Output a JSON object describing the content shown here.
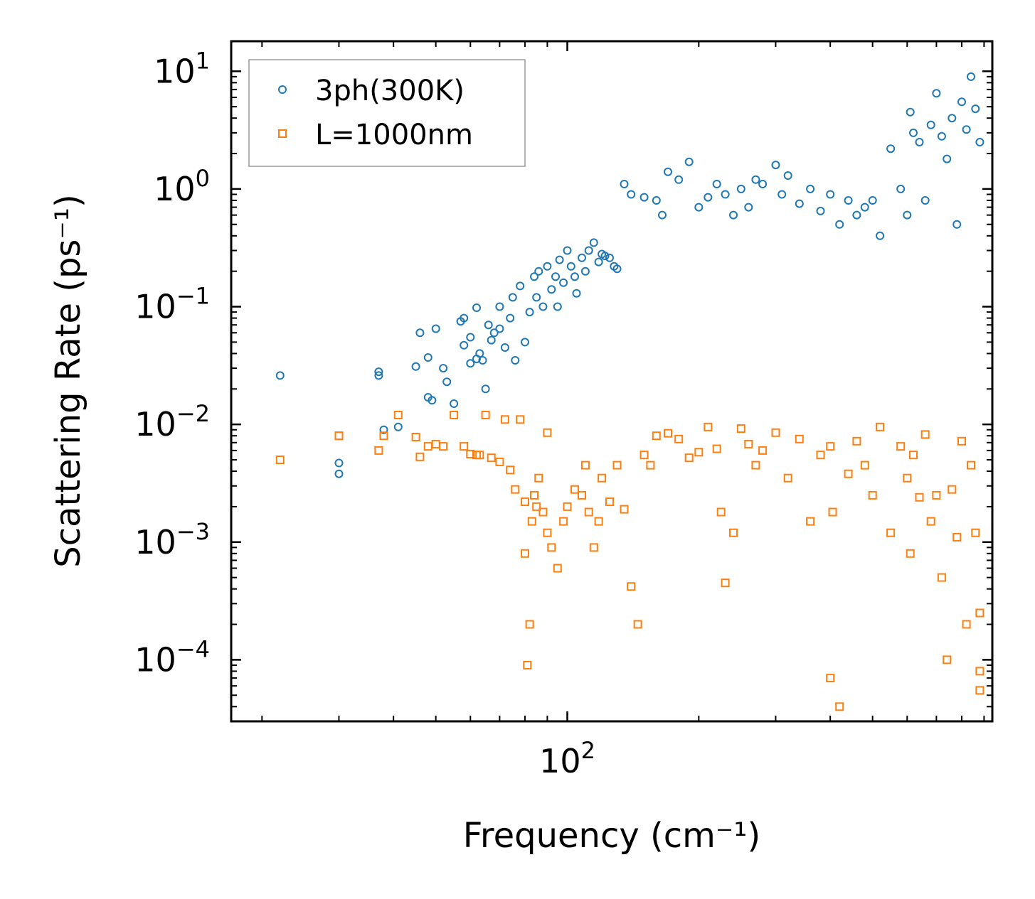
{
  "chart_data": {
    "type": "scatter",
    "title": "",
    "xlabel": "Frequency (cm⁻¹)",
    "ylabel": "Scattering Rate (ps⁻¹)",
    "xscale": "log",
    "yscale": "log",
    "xlim": [
      17,
      940
    ],
    "ylim": [
      3e-05,
      18
    ],
    "x_ticks": [
      {
        "value": 100,
        "base": "10",
        "exp": "2"
      }
    ],
    "y_ticks": [
      {
        "value": 10,
        "base": "10",
        "exp": "1"
      },
      {
        "value": 1,
        "base": "10",
        "exp": "0"
      },
      {
        "value": 0.1,
        "base": "10",
        "exp": "−1"
      },
      {
        "value": 0.01,
        "base": "10",
        "exp": "−2"
      },
      {
        "value": 0.001,
        "base": "10",
        "exp": "−3"
      },
      {
        "value": 0.0001,
        "base": "10",
        "exp": "−4"
      }
    ],
    "legend_position": "upper-left",
    "series": [
      {
        "name": "3ph(300K)",
        "marker": "circle",
        "color": "#1f77b4",
        "x": [
          22,
          30,
          30,
          37,
          37,
          38,
          41,
          45,
          46,
          48,
          48,
          49,
          50,
          52,
          53,
          55,
          57,
          58,
          58,
          60,
          60,
          62,
          62,
          63,
          64,
          65,
          66,
          67,
          68,
          70,
          70,
          72,
          74,
          75,
          76,
          78,
          80,
          82,
          84,
          85,
          86,
          88,
          90,
          92,
          94,
          95,
          96,
          98,
          100,
          102,
          104,
          105,
          108,
          110,
          112,
          115,
          118,
          120,
          122,
          125,
          128,
          130,
          135,
          140,
          150,
          160,
          165,
          170,
          180,
          190,
          200,
          210,
          220,
          230,
          240,
          250,
          260,
          270,
          280,
          300,
          310,
          320,
          340,
          360,
          380,
          400,
          420,
          440,
          460,
          480,
          500,
          520,
          550,
          580,
          600,
          610,
          620,
          640,
          660,
          680,
          700,
          720,
          740,
          760,
          780,
          800,
          820,
          840,
          860,
          880
        ],
        "y": [
          0.026,
          0.0047,
          0.0038,
          0.028,
          0.026,
          0.009,
          0.0095,
          0.031,
          0.06,
          0.037,
          0.017,
          0.016,
          0.065,
          0.03,
          0.023,
          0.015,
          0.075,
          0.08,
          0.047,
          0.055,
          0.033,
          0.036,
          0.098,
          0.04,
          0.035,
          0.02,
          0.07,
          0.052,
          0.06,
          0.1,
          0.065,
          0.045,
          0.08,
          0.12,
          0.035,
          0.15,
          0.05,
          0.09,
          0.18,
          0.12,
          0.2,
          0.1,
          0.22,
          0.14,
          0.18,
          0.1,
          0.25,
          0.16,
          0.3,
          0.22,
          0.18,
          0.13,
          0.26,
          0.2,
          0.3,
          0.35,
          0.24,
          0.28,
          0.27,
          0.26,
          0.22,
          0.21,
          1.1,
          0.9,
          0.85,
          0.8,
          0.6,
          1.4,
          1.2,
          1.7,
          0.7,
          0.85,
          1.1,
          0.9,
          0.6,
          1.0,
          0.7,
          1.2,
          1.1,
          1.6,
          0.9,
          1.3,
          0.75,
          1.0,
          0.65,
          0.9,
          0.5,
          0.8,
          0.6,
          0.7,
          0.8,
          0.4,
          2.2,
          1.0,
          0.6,
          4.5,
          3.0,
          2.5,
          0.8,
          3.5,
          6.5,
          2.8,
          1.8,
          4.0,
          0.5,
          5.5,
          3.2,
          9.0,
          4.8,
          2.5
        ]
      },
      {
        "name": "L=1000nm",
        "marker": "square",
        "color": "#ff7f0e",
        "x": [
          22,
          30,
          30,
          37,
          38,
          41,
          45,
          46,
          48,
          50,
          52,
          55,
          58,
          60,
          62,
          63,
          65,
          67,
          70,
          72,
          74,
          76,
          78,
          80,
          80,
          81,
          82,
          83,
          84,
          85,
          86,
          88,
          90,
          90,
          92,
          95,
          98,
          100,
          104,
          108,
          110,
          112,
          115,
          118,
          120,
          125,
          130,
          135,
          140,
          145,
          150,
          155,
          160,
          170,
          180,
          190,
          200,
          210,
          220,
          225,
          230,
          240,
          250,
          260,
          270,
          280,
          300,
          320,
          340,
          360,
          380,
          400,
          400,
          405,
          420,
          440,
          460,
          480,
          500,
          520,
          550,
          580,
          600,
          610,
          620,
          640,
          660,
          680,
          700,
          720,
          740,
          760,
          780,
          800,
          820,
          840,
          860,
          880,
          880,
          880
        ],
        "y": [
          0.005,
          0.008,
          0.008,
          0.006,
          0.008,
          0.012,
          0.0078,
          0.0053,
          0.0065,
          0.0068,
          0.0065,
          0.012,
          0.0065,
          0.0056,
          0.0055,
          0.0055,
          0.012,
          0.0052,
          0.0048,
          0.011,
          0.0041,
          0.0028,
          0.011,
          0.0022,
          0.0008,
          9e-05,
          0.0002,
          0.0015,
          0.0025,
          0.002,
          0.0035,
          0.0018,
          0.0085,
          0.0012,
          0.0009,
          0.0006,
          0.0015,
          0.002,
          0.0028,
          0.0025,
          0.0045,
          0.0018,
          0.0009,
          0.0015,
          0.0035,
          0.0022,
          0.0045,
          0.0019,
          0.00042,
          0.0002,
          0.0055,
          0.0045,
          0.008,
          0.0084,
          0.0075,
          0.0052,
          0.0058,
          0.0095,
          0.0062,
          0.0018,
          0.00045,
          0.0012,
          0.0092,
          0.0068,
          0.0045,
          0.006,
          0.0085,
          0.0035,
          0.0075,
          0.0015,
          0.0055,
          0.0065,
          7e-05,
          0.0018,
          4e-05,
          0.0038,
          0.0072,
          0.0045,
          0.0025,
          0.0095,
          0.0012,
          0.0065,
          0.0035,
          0.0008,
          0.0055,
          0.0024,
          0.0082,
          0.0015,
          0.0025,
          0.0005,
          0.0001,
          0.0028,
          0.0011,
          0.0072,
          0.0002,
          0.0045,
          0.0012,
          0.00025,
          8e-05,
          5.5e-05
        ]
      }
    ]
  }
}
